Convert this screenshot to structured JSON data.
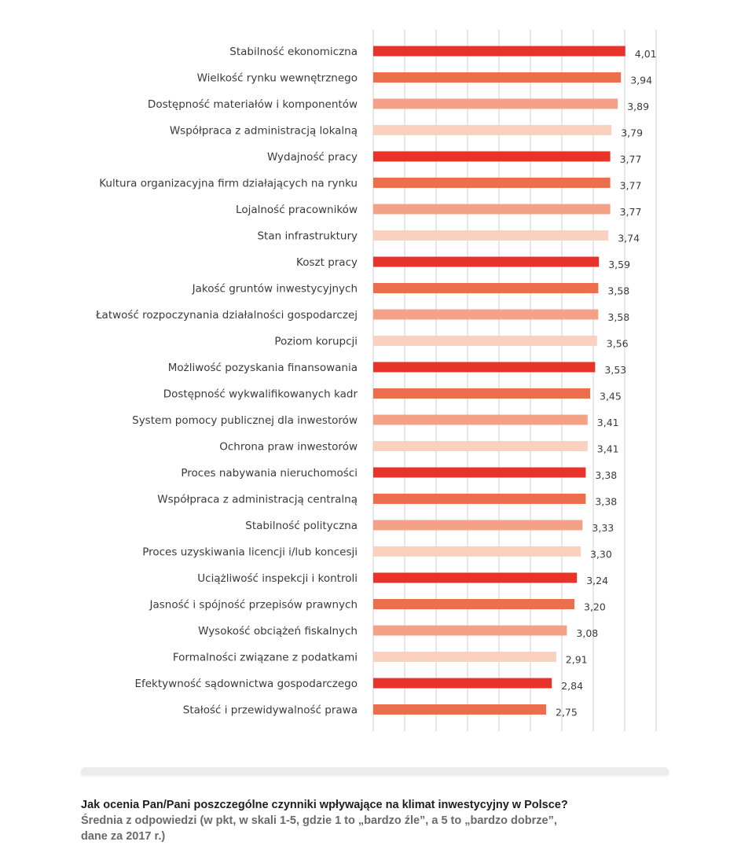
{
  "chart_data": {
    "type": "bar",
    "orientation": "horizontal",
    "xlim": [
      0,
      4.5
    ],
    "grid": true,
    "colors": [
      "#e8332a",
      "#ec6e4c",
      "#f3a287",
      "#fad0bf"
    ],
    "categories": [
      "Stabilność ekonomiczna",
      "Wielkość rynku wewnętrznego",
      "Dostępność materiałów i komponentów",
      "Współpraca z administracją lokalną",
      "Wydajność pracy",
      "Kultura organizacyjna firm działających na rynku",
      "Lojalność pracowników",
      "Stan infrastruktury",
      "Koszt pracy",
      "Jakość gruntów inwestycyjnych",
      "Łatwość rozpoczynania działalności gospodarczej",
      "Poziom korupcji",
      "Możliwość pozyskania finansowania",
      "Dostępność wykwalifikowanych kadr",
      "System pomocy publicznej dla inwestorów",
      "Ochrona praw inwestorów",
      "Proces nabywania nieruchomości",
      "Współpraca z administracją centralną",
      "Stabilność polityczna",
      "Proces uzyskiwania licencji i/lub koncesji",
      "Uciążliwość inspekcji i kontroli",
      "Jasność i spójność przepisów prawnych",
      "Wysokość obciążeń fiskalnych",
      "Formalności związane z podatkami",
      "Efektywność sądownictwa gospodarczego",
      "Stałość i przewidywalność prawa"
    ],
    "values": [
      4.01,
      3.94,
      3.89,
      3.79,
      3.77,
      3.77,
      3.77,
      3.74,
      3.59,
      3.58,
      3.58,
      3.56,
      3.53,
      3.45,
      3.41,
      3.41,
      3.38,
      3.38,
      3.33,
      3.3,
      3.24,
      3.2,
      3.08,
      2.91,
      2.84,
      2.75
    ],
    "value_labels": [
      "4,01",
      "3,94",
      "3,89",
      "3,79",
      "3,77",
      "3,77",
      "3,77",
      "3,74",
      "3,59",
      "3,58",
      "3,58",
      "3,56",
      "3,53",
      "3,45",
      "3,41",
      "3,41",
      "3,38",
      "3,38",
      "3,33",
      "3,30",
      "3,24",
      "3,20",
      "3,08",
      "2,91",
      "2,84",
      "2,75"
    ],
    "color_index": [
      0,
      1,
      2,
      3,
      0,
      1,
      2,
      3,
      0,
      1,
      2,
      3,
      0,
      1,
      2,
      3,
      0,
      1,
      2,
      3,
      0,
      1,
      2,
      3,
      0,
      1
    ]
  },
  "caption": {
    "title": "Jak ocenia Pan/Pani poszczególne czynniki wpływające na klimat inwestycyjny w Polsce?",
    "subtitle_line1": "Średnia z odpowiedzi (w pkt, w skali 1-5, gdzie 1 to „bardzo źle”, a 5 to „bardzo dobrze”,",
    "subtitle_line2": "dane za 2017 r.)"
  }
}
